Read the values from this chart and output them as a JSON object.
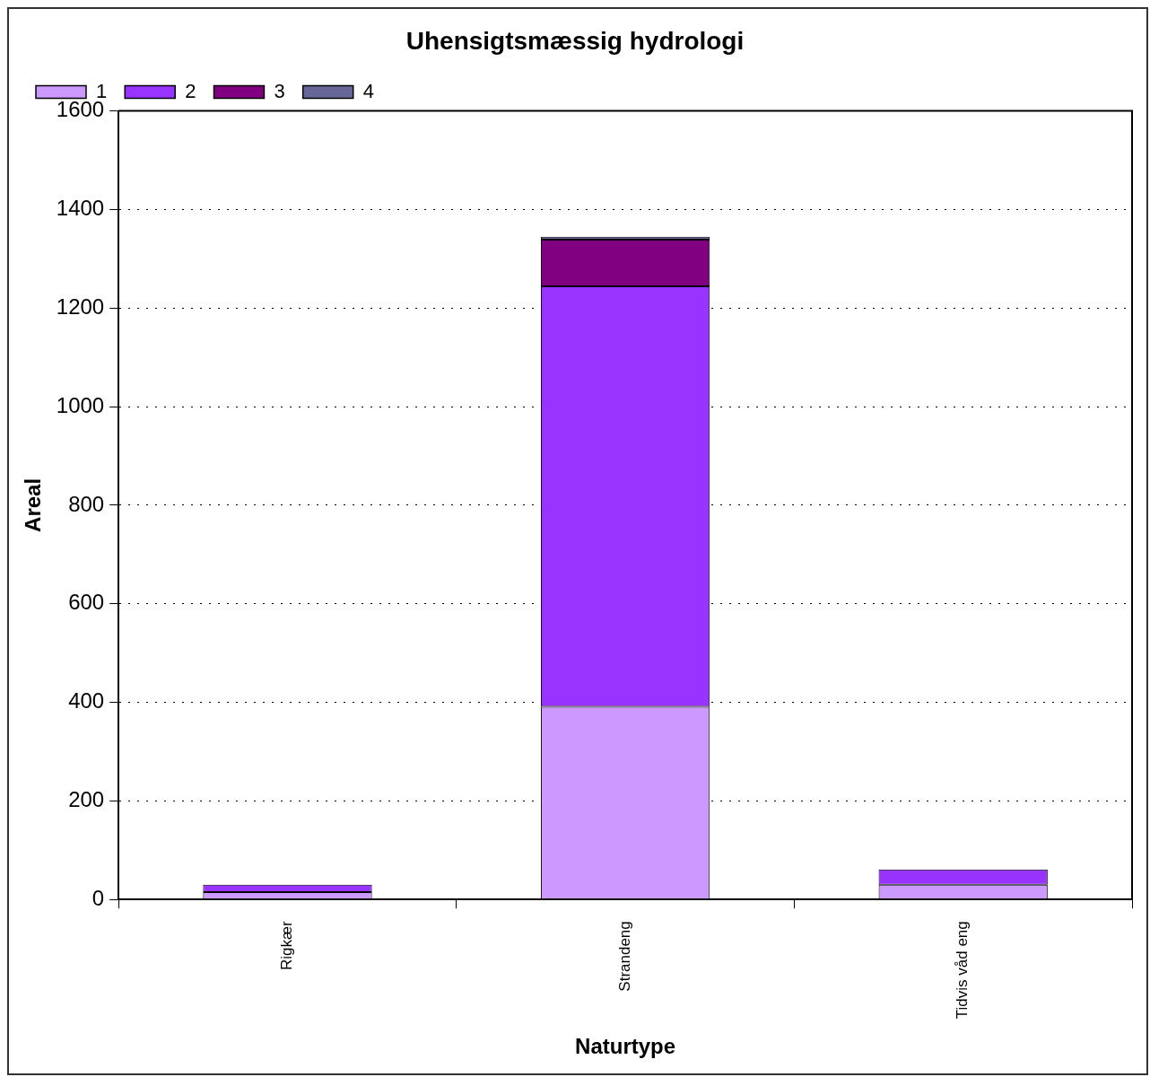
{
  "chart_data": {
    "type": "bar",
    "title": "Uhensigtsmæssig hydrologi",
    "xlabel": "Naturtype",
    "ylabel": "Areal",
    "categories": [
      "Rigkær",
      "Strandeng",
      "Tidvis våd eng"
    ],
    "stacked": true,
    "series": [
      {
        "name": "1",
        "color": "#cc99ff",
        "values": [
          15,
          391,
          30
        ]
      },
      {
        "name": "2",
        "color": "#9933ff",
        "values": [
          15,
          853,
          31
        ]
      },
      {
        "name": "3",
        "color": "#800080",
        "values": [
          null,
          95,
          null
        ]
      },
      {
        "name": "4",
        "color": "#666699",
        "values": [
          null,
          6,
          null
        ]
      }
    ],
    "ylim": [
      0,
      1600
    ],
    "yticks": [
      0,
      200,
      400,
      600,
      800,
      1000,
      1200,
      1400,
      1600
    ],
    "grid": "y",
    "legend": "top left"
  }
}
